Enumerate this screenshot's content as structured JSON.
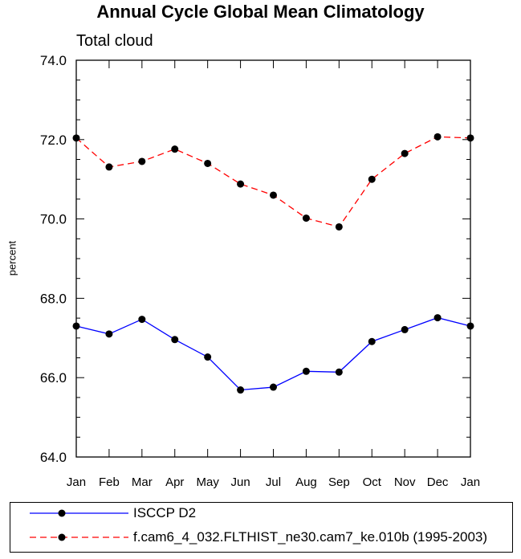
{
  "chart_data": {
    "type": "line",
    "title": "Annual Cycle Global Mean Climatology",
    "subtitle": "Total cloud",
    "xlabel": "",
    "ylabel": "percent",
    "categories": [
      "Jan",
      "Feb",
      "Mar",
      "Apr",
      "May",
      "Jun",
      "Jul",
      "Aug",
      "Sep",
      "Oct",
      "Nov",
      "Dec",
      "Jan"
    ],
    "ylim": [
      64.0,
      74.0
    ],
    "yticks": [
      "64.0",
      "66.0",
      "68.0",
      "70.0",
      "72.0",
      "74.0"
    ],
    "legend_position": "bottom",
    "series": [
      {
        "name": "ISCCP D2",
        "color": "#0000ff",
        "line_style": "solid",
        "values": [
          67.3,
          67.1,
          67.47,
          66.96,
          66.52,
          65.69,
          65.76,
          66.16,
          66.14,
          66.91,
          67.21,
          67.51,
          67.3
        ]
      },
      {
        "name": "f.cam6_4_032.FLTHIST_ne30.cam7_ke.010b (1995-2003)",
        "color": "#ff0000",
        "line_style": "dashed",
        "values": [
          72.04,
          71.31,
          71.45,
          71.76,
          71.4,
          70.88,
          70.6,
          70.02,
          69.8,
          71.0,
          71.65,
          72.07,
          72.04
        ]
      }
    ]
  }
}
